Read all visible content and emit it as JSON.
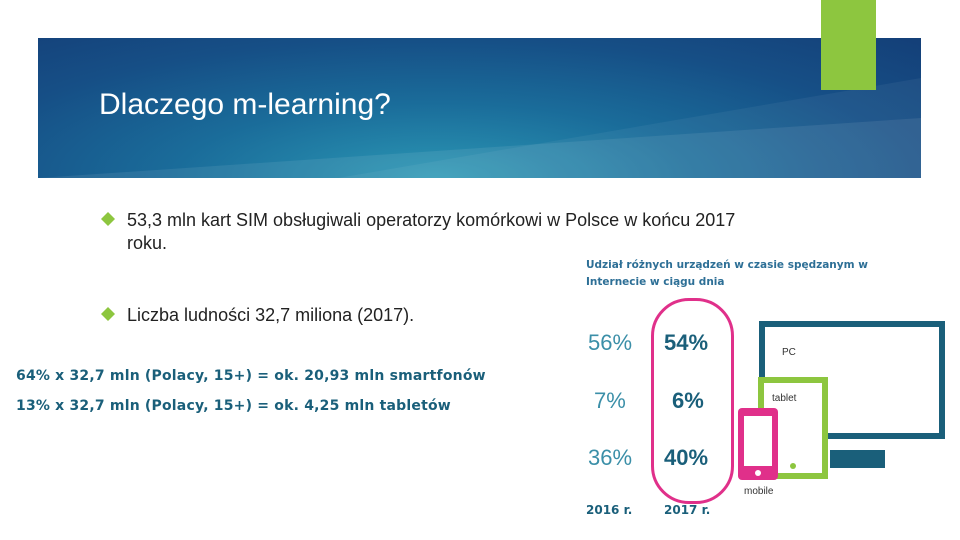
{
  "slide": {
    "title": "Dlaczego m-learning?",
    "bullets": [
      "53,3 mln kart SIM obsługiwali operatorzy komórkowi w Polsce w końcu 2017 roku.",
      "Liczba ludności 32,7 miliona (2017)."
    ],
    "calculations": [
      "64% x 32,7 mln (Polacy, 15+) = ok. 20,93 mln smartfonów",
      "13% x 32,7 mln (Polacy, 15+) = ok. 4,25 mln tabletów"
    ]
  },
  "infographic": {
    "title": "Udział różnych urządzeń w czasie spędzanym w Internecie w ciągu dnia",
    "years": [
      "2016 r.",
      "2017 r."
    ],
    "rows": [
      {
        "v2016": "56%",
        "v2017": "54%"
      },
      {
        "v2016": "7%",
        "v2017": "6%"
      },
      {
        "v2016": "36%",
        "v2017": "40%"
      }
    ],
    "devices": {
      "pc": "PC",
      "tablet": "tablet",
      "mobile": "mobile"
    }
  },
  "colors": {
    "accent_green": "#8dc63f",
    "accent_pink": "#e0308a",
    "dark_teal": "#1a5f7a",
    "banner_blue": "#164f86"
  }
}
